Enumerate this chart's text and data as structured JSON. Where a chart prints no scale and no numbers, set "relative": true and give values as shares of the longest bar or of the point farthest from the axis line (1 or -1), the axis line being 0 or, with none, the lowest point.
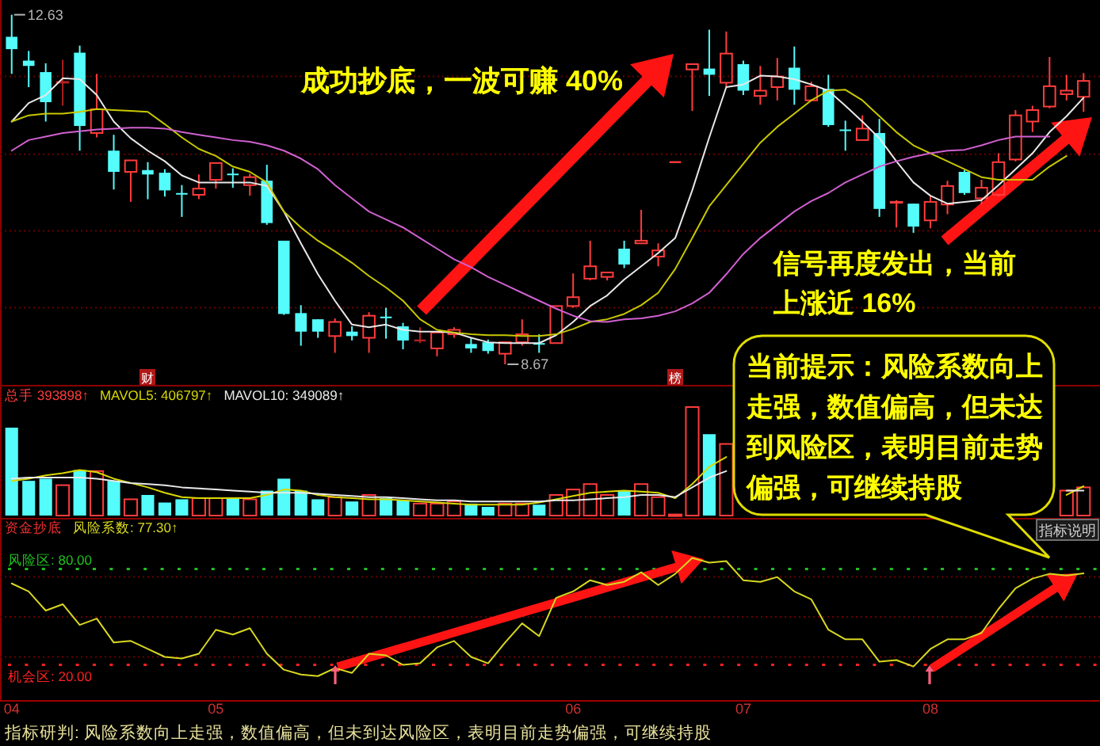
{
  "chart_data": [
    {
      "type": "candlestick",
      "categories": [
        null,
        null,
        null,
        null,
        null,
        null,
        null,
        null,
        null,
        null,
        null,
        null,
        null,
        null,
        null,
        null,
        null,
        null,
        null,
        null,
        null,
        null,
        null,
        null,
        null,
        null,
        null,
        null,
        null,
        null,
        null,
        null,
        null,
        null,
        null,
        null,
        null,
        null,
        null,
        null,
        null,
        null,
        null,
        null,
        null,
        null,
        null,
        null,
        null,
        null,
        null,
        null,
        null,
        null,
        null,
        null,
        null,
        null,
        null,
        null,
        null,
        null,
        null,
        null
      ],
      "ohlc": [
        [
          12.38,
          12.63,
          11.96,
          12.24
        ],
        [
          12.11,
          12.22,
          11.81,
          12.05
        ],
        [
          11.98,
          12.08,
          11.42,
          11.64
        ],
        [
          11.86,
          12.12,
          11.6,
          11.87
        ],
        [
          12.2,
          12.28,
          11.09,
          11.37
        ],
        [
          11.29,
          11.96,
          11.24,
          11.56
        ],
        [
          11.09,
          11.27,
          10.65,
          10.85
        ],
        [
          10.85,
          10.98,
          10.51,
          10.98
        ],
        [
          10.87,
          10.96,
          10.54,
          10.82
        ],
        [
          10.84,
          10.88,
          10.57,
          10.64
        ],
        [
          10.61,
          10.7,
          10.34,
          10.6
        ],
        [
          10.59,
          10.82,
          10.54,
          10.66
        ],
        [
          10.76,
          10.95,
          10.66,
          10.95
        ],
        [
          10.83,
          10.89,
          10.67,
          10.82
        ],
        [
          10.7,
          10.83,
          10.58,
          10.79
        ],
        [
          10.75,
          10.93,
          10.25,
          10.27
        ],
        [
          10.07,
          10.07,
          9.23,
          9.24
        ],
        [
          9.25,
          9.34,
          8.88,
          9.04
        ],
        [
          9.18,
          9.18,
          8.97,
          9.04
        ],
        [
          8.99,
          9.19,
          8.8,
          9.15
        ],
        [
          9.04,
          9.1,
          8.94,
          8.99
        ],
        [
          8.97,
          9.26,
          8.8,
          9.22
        ],
        [
          9.21,
          9.31,
          8.96,
          9.2
        ],
        [
          9.1,
          9.14,
          8.84,
          8.94
        ],
        [
          8.94,
          9.09,
          8.91,
          8.94
        ],
        [
          8.85,
          9.03,
          8.76,
          9.03
        ],
        [
          9.01,
          9.09,
          8.97,
          9.06
        ],
        [
          8.9,
          8.97,
          8.8,
          8.85
        ],
        [
          8.92,
          8.95,
          8.79,
          8.82
        ],
        [
          8.79,
          8.92,
          8.67,
          8.92
        ],
        [
          8.92,
          9.18,
          8.88,
          9.01
        ],
        [
          8.91,
          9.01,
          8.8,
          8.9
        ],
        [
          8.91,
          9.34,
          8.9,
          9.33
        ],
        [
          9.33,
          9.7,
          9.31,
          9.43
        ],
        [
          9.64,
          10.07,
          9.62,
          9.78
        ],
        [
          9.66,
          9.71,
          9.62,
          9.71
        ],
        [
          9.98,
          10.07,
          9.76,
          9.8
        ],
        [
          10.04,
          10.42,
          10.04,
          10.07
        ],
        [
          9.89,
          10.04,
          9.78,
          9.96
        ],
        [
          10.96,
          10.96,
          10.96,
          10.96
        ],
        [
          12.01,
          12.07,
          11.54,
          12.07
        ],
        [
          12.02,
          12.46,
          11.71,
          11.95
        ],
        [
          11.86,
          12.44,
          11.81,
          12.19
        ],
        [
          12.07,
          12.11,
          11.72,
          11.77
        ],
        [
          11.71,
          12.05,
          11.61,
          11.77
        ],
        [
          11.81,
          12.14,
          11.66,
          11.93
        ],
        [
          12.03,
          12.27,
          11.61,
          11.78
        ],
        [
          11.66,
          11.87,
          11.66,
          11.82
        ],
        [
          11.79,
          11.95,
          11.36,
          11.38
        ],
        [
          11.33,
          11.43,
          11.09,
          11.32
        ],
        [
          11.21,
          11.49,
          11.21,
          11.34
        ],
        [
          11.29,
          11.45,
          10.34,
          10.43
        ],
        [
          10.5,
          10.53,
          10.22,
          10.51
        ],
        [
          10.49,
          10.49,
          10.16,
          10.23
        ],
        [
          10.3,
          10.58,
          10.21,
          10.51
        ],
        [
          10.48,
          10.75,
          10.37,
          10.69
        ],
        [
          10.85,
          10.87,
          10.59,
          10.61
        ],
        [
          10.55,
          10.76,
          10.48,
          10.67
        ],
        [
          10.59,
          11.06,
          10.57,
          10.96
        ],
        [
          10.99,
          11.55,
          10.97,
          11.49
        ],
        [
          11.42,
          11.6,
          11.3,
          11.55
        ],
        [
          11.59,
          12.15,
          11.57,
          11.82
        ],
        [
          11.73,
          11.95,
          11.66,
          11.77
        ],
        [
          11.7,
          11.97,
          11.53,
          11.88
        ]
      ],
      "colors": [
        "#54fcfc",
        "#54fcfc",
        "#54fcfc",
        "#b02020",
        "#54fcfc",
        "#ff3c3c",
        "#54fcfc",
        "#ff3c3c",
        "#54fcfc",
        "#54fcfc",
        "#54fcfc",
        "#ff3c3c",
        "#ff3c3c",
        "#54fcfc",
        "#ff3c3c",
        "#54fcfc",
        "#54fcfc",
        "#54fcfc",
        "#54fcfc",
        "#ff3c3c",
        "#54fcfc",
        "#ff3c3c",
        "#54fcfc",
        "#54fcfc",
        "#b02020",
        "#ff3c3c",
        "#ff3c3c",
        "#54fcfc",
        "#54fcfc",
        "#ff3c3c",
        "#ff3c3c",
        "#54fcfc",
        "#ff3c3c",
        "#ff3c3c",
        "#ff3c3c",
        "#ff3c3c",
        "#54fcfc",
        "#ff3c3c",
        "#ff3c3c",
        "#ff3c3c",
        "#ff3c3c",
        "#54fcfc",
        "#ff3c3c",
        "#54fcfc",
        "#ff3c3c",
        "#ff3c3c",
        "#54fcfc",
        "#ff3c3c",
        "#54fcfc",
        "#54fcfc",
        "#ff3c3c",
        "#54fcfc",
        "#ff3c3c",
        "#54fcfc",
        "#ff3c3c",
        "#ff3c3c",
        "#54fcfc",
        "#ff3c3c",
        "#ff3c3c",
        "#ff3c3c",
        "#ff3c3c",
        "#ff3c3c",
        "#ff3c3c",
        "#ff3c3c"
      ],
      "series": [
        {
          "type": "line",
          "color": "#e8e8e8",
          "values": [
            11.42,
            11.63,
            11.72,
            11.91,
            11.9,
            11.72,
            11.42,
            11.23,
            11.09,
            10.97,
            10.81,
            10.73,
            10.73,
            10.73,
            10.73,
            10.69,
            10.4,
            10.04,
            9.69,
            9.39,
            9.12,
            9.09,
            9.12,
            9.06,
            9.04,
            9.04,
            9.03,
            8.97,
            8.92,
            8.91,
            8.91,
            8.91,
            9.0,
            9.15,
            9.33,
            9.45,
            9.63,
            9.78,
            9.93,
            10.1,
            10.64,
            11.24,
            11.81,
            11.84,
            11.94,
            11.93,
            11.9,
            11.84,
            11.77,
            11.6,
            11.42,
            11.23,
            10.97,
            10.73,
            10.58,
            10.49,
            10.51,
            10.53,
            10.7,
            10.88,
            11.06,
            11.3,
            11.48,
            11.69
          ]
        },
        {
          "type": "line",
          "color": "#c8c800",
          "values": [
            11.42,
            11.49,
            11.51,
            11.51,
            11.53,
            11.56,
            11.55,
            11.54,
            11.53,
            11.39,
            11.24,
            11.11,
            11.03,
            10.91,
            10.85,
            10.73,
            10.4,
            10.22,
            10.07,
            9.95,
            9.82,
            9.67,
            9.54,
            9.39,
            9.18,
            9.06,
            9.03,
            9.01,
            9.0,
            9.0,
            8.99,
            8.99,
            9.01,
            9.07,
            9.15,
            9.18,
            9.24,
            9.34,
            9.48,
            9.75,
            10.1,
            10.46,
            10.7,
            10.94,
            11.18,
            11.36,
            11.51,
            11.66,
            11.77,
            11.78,
            11.66,
            11.48,
            11.3,
            11.15,
            11.06,
            10.97,
            10.88,
            10.79,
            10.76,
            10.76,
            10.76,
            10.91,
            11.03,
            null
          ]
        },
        {
          "type": "line",
          "color": "#d060d0",
          "values": [
            11.09,
            11.21,
            11.25,
            11.29,
            11.31,
            11.33,
            11.34,
            11.35,
            11.35,
            11.34,
            11.3,
            11.27,
            11.24,
            11.21,
            11.19,
            11.15,
            11.09,
            11.0,
            10.88,
            10.7,
            10.55,
            10.4,
            10.31,
            10.22,
            10.1,
            9.98,
            9.86,
            9.77,
            9.66,
            9.57,
            9.48,
            9.39,
            9.3,
            9.22,
            9.16,
            9.15,
            9.18,
            9.19,
            9.22,
            9.27,
            9.36,
            9.48,
            9.69,
            9.92,
            10.1,
            10.25,
            10.4,
            10.52,
            10.61,
            10.73,
            10.82,
            10.91,
            10.97,
            11.02,
            11.06,
            11.09,
            11.1,
            11.15,
            11.21,
            11.25,
            11.25,
            11.25,
            null,
            null
          ]
        }
      ],
      "yticks": [
        {
          "value": 11.93,
          "label": null
        },
        {
          "value": 11.05,
          "label": null
        },
        {
          "value": 10.18,
          "label": null
        },
        {
          "value": 9.31,
          "label": null
        }
      ],
      "annotations": [
        "12.63",
        "8.67",
        "成功抄底，一波可赚 40%",
        "信号再度发出，当前上涨近 16%",
        "财",
        "榜"
      ],
      "grid": true,
      "tick_labels": false
    },
    {
      "type": "bar",
      "categories": [
        null,
        null,
        null,
        null,
        null,
        null,
        null,
        null,
        null,
        null,
        null,
        null,
        null,
        null,
        null,
        null,
        null,
        null,
        null,
        null,
        null,
        null,
        null,
        null,
        null,
        null,
        null,
        null,
        null,
        null,
        null,
        null,
        null,
        null,
        null,
        null,
        null,
        null,
        null,
        null,
        null,
        null,
        null,
        null,
        null,
        null,
        null,
        null,
        null,
        null,
        null,
        null,
        null,
        null,
        null,
        null,
        null,
        null,
        null,
        null,
        null,
        null,
        null,
        null
      ],
      "relative": true,
      "series": [
        {
          "name": "总手 393898↑",
          "type": "bar",
          "color": "#ff3c3c",
          "colors": [
            "#54fcfc",
            "#54fcfc",
            "#54fcfc",
            "#ff3c3c",
            "#54fcfc",
            "#ff3c3c",
            "#54fcfc",
            "#ff3c3c",
            "#54fcfc",
            "#54fcfc",
            "#54fcfc",
            "#ff3c3c",
            "#ff3c3c",
            "#54fcfc",
            "#ff3c3c",
            "#54fcfc",
            "#54fcfc",
            "#54fcfc",
            "#54fcfc",
            "#ff3c3c",
            "#54fcfc",
            "#ff3c3c",
            "#54fcfc",
            "#54fcfc",
            "#ff3c3c",
            "#ff3c3c",
            "#ff3c3c",
            "#54fcfc",
            "#54fcfc",
            "#ff3c3c",
            "#ff3c3c",
            "#54fcfc",
            "#ff3c3c",
            "#ff3c3c",
            "#ff3c3c",
            "#ff3c3c",
            "#54fcfc",
            "#ff3c3c",
            "#ff3c3c",
            "#ff3c3c",
            "#ff3c3c",
            "#54fcfc",
            "#ff3c3c",
            null,
            null,
            null,
            null,
            null,
            null,
            null,
            null,
            null,
            null,
            null,
            null,
            null,
            null,
            null,
            null,
            null,
            null,
            null,
            "#ff3c3c",
            "#ff3c3c"
          ],
          "values": [
            0.81,
            0.32,
            0.34,
            0.28,
            0.42,
            0.41,
            0.32,
            0.15,
            0.19,
            0.12,
            0.15,
            0.16,
            0.16,
            0.16,
            0.15,
            0.23,
            0.34,
            0.23,
            0.15,
            0.17,
            0.13,
            0.19,
            0.16,
            0.14,
            0.11,
            0.11,
            0.13,
            0.11,
            0.08,
            0.11,
            0.11,
            0.1,
            0.19,
            0.24,
            0.29,
            0.19,
            0.23,
            0.29,
            0.17,
            0.01,
            1,
            0.75,
            0.66,
            null,
            null,
            null,
            null,
            null,
            null,
            null,
            null,
            null,
            null,
            null,
            null,
            null,
            null,
            null,
            null,
            null,
            null,
            null,
            0.23,
            0.26
          ]
        },
        {
          "name": "MAVOL5: 406797↑",
          "type": "line",
          "color": "#d8d800",
          "values": [
            0.32,
            0.34,
            0.37,
            0.39,
            0.42,
            0.4,
            0.34,
            0.3,
            0.26,
            0.21,
            0.17,
            0.16,
            0.16,
            0.16,
            0.16,
            0.19,
            0.24,
            0.23,
            0.19,
            0.17,
            0.16,
            0.15,
            0.15,
            0.14,
            0.13,
            0.12,
            0.11,
            0.1,
            0.1,
            0.1,
            0.1,
            0.12,
            0.15,
            0.18,
            0.21,
            0.22,
            0.23,
            0.22,
            0.21,
            0.16,
            0.29,
            0.45,
            0.54,
            null,
            null,
            null,
            null,
            null,
            null,
            null,
            null,
            null,
            null,
            null,
            null,
            null,
            null,
            null,
            null,
            null,
            null,
            null,
            0.19,
            0.27
          ]
        },
        {
          "name": "MAVOL10: 349089↑",
          "type": "line",
          "color": "#e8e8e8",
          "values": [
            0.34,
            0.35,
            0.35,
            0.35,
            0.35,
            0.34,
            0.32,
            0.3,
            0.29,
            0.28,
            0.26,
            0.25,
            0.24,
            0.23,
            0.22,
            0.21,
            0.21,
            0.21,
            0.2,
            0.19,
            0.18,
            0.17,
            0.17,
            0.16,
            0.15,
            0.14,
            0.14,
            0.13,
            0.13,
            0.13,
            0.13,
            0.13,
            0.14,
            0.14,
            0.15,
            0.16,
            0.17,
            0.19,
            0.19,
            0.17,
            0.26,
            0.35,
            0.41,
            null,
            null,
            null,
            null,
            null,
            null,
            null,
            null,
            null,
            null,
            null,
            null,
            null,
            null,
            null,
            null,
            null,
            null,
            null,
            0.23,
            0.23
          ]
        }
      ],
      "legend": "top left",
      "tick_labels": false
    },
    {
      "type": "line",
      "title": "资金抄底",
      "categories": [
        "04",
        null,
        null,
        null,
        null,
        null,
        null,
        null,
        null,
        null,
        null,
        null,
        "05",
        null,
        null,
        null,
        null,
        null,
        null,
        null,
        null,
        null,
        null,
        null,
        null,
        null,
        null,
        null,
        null,
        null,
        null,
        null,
        null,
        "06",
        null,
        null,
        null,
        null,
        null,
        null,
        null,
        null,
        null,
        "07",
        null,
        null,
        null,
        null,
        null,
        null,
        null,
        null,
        null,
        null,
        "08",
        null,
        null,
        null,
        null,
        null,
        null,
        null,
        null,
        null
      ],
      "ylim": [
        -2,
        112
      ],
      "yticks": [
        {
          "value": 25,
          "label": null
        },
        {
          "value": 50,
          "label": null
        },
        {
          "value": 75,
          "label": null
        }
      ],
      "series": [
        {
          "name": "风险系数: 77.30↑",
          "color": "#d8d820",
          "values": [
            71,
            66,
            54,
            58,
            45,
            49,
            34,
            35,
            30,
            25,
            24,
            27,
            42,
            39,
            43,
            27,
            17,
            14,
            13,
            18,
            15,
            27,
            26,
            20,
            21,
            31,
            35,
            25,
            21,
            34,
            46,
            38,
            62,
            66,
            73,
            70,
            72,
            78,
            70,
            77,
            87,
            84,
            85,
            73,
            72,
            75,
            66,
            61,
            42,
            36,
            36,
            22,
            23,
            19,
            30,
            36,
            36,
            40,
            55,
            68,
            74,
            77,
            76,
            77.3
          ]
        }
      ],
      "ref_lines": [
        {
          "axis": "y",
          "value": 20,
          "label": "机会区: 20.00",
          "color": "#ff2020",
          "line_style": "dotted"
        },
        {
          "axis": "y",
          "value": 80,
          "label": "风险区: 80.00",
          "color": "#20c020",
          "line_style": "dotted"
        }
      ],
      "annotations": [
        "当前提示：风险系数向上走强，数值偏高，但未达到风险区，表明目前走势偏强，可继续持股",
        "指标说明",
        "指标研判: 风险系数向上走强，数值偏高，但未到达风险区，表明目前走势偏强，可继续持股"
      ],
      "grid": true,
      "legend": "top left",
      "tick_labels": "x"
    }
  ]
}
